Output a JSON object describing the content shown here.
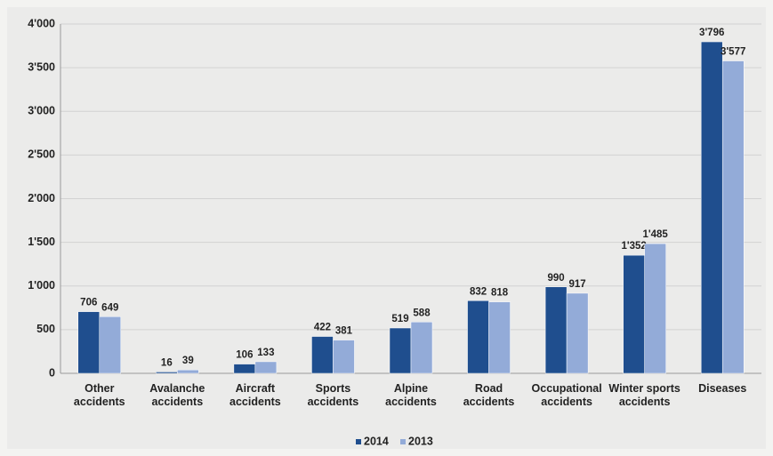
{
  "chart_data": {
    "type": "bar",
    "categories": [
      "Other accidents",
      "Avalanche accidents",
      "Aircraft accidents",
      "Sports accidents",
      "Alpine accidents",
      "Road accidents",
      "Occupational accidents",
      "Winter sports accidents",
      "Diseases"
    ],
    "series": [
      {
        "name": "2014",
        "color": "#1f4e8e",
        "values": [
          706,
          16,
          106,
          422,
          519,
          832,
          990,
          1352,
          3796
        ],
        "value_labels": [
          "706",
          "16",
          "106",
          "422",
          "519",
          "832",
          "990",
          "1'352",
          "3'796"
        ]
      },
      {
        "name": "2013",
        "color": "#93abd8",
        "values": [
          649,
          39,
          133,
          381,
          588,
          818,
          917,
          1485,
          3577
        ],
        "value_labels": [
          "649",
          "39",
          "133",
          "381",
          "588",
          "818",
          "917",
          "1'485",
          "3'577"
        ]
      }
    ],
    "ylim": [
      0,
      4000
    ],
    "yticks": [
      0,
      500,
      {
        "value": 1000,
        "label": "1'000"
      },
      {
        "value": 1500,
        "label": "1'500"
      },
      {
        "value": 2000,
        "label": "2'000"
      },
      {
        "value": 2500,
        "label": "2'500"
      },
      {
        "value": 3000,
        "label": "3'000"
      },
      {
        "value": 3500,
        "label": "3'500"
      },
      {
        "value": 4000,
        "label": "4'000"
      }
    ],
    "grid": true,
    "legend": "bottom"
  }
}
